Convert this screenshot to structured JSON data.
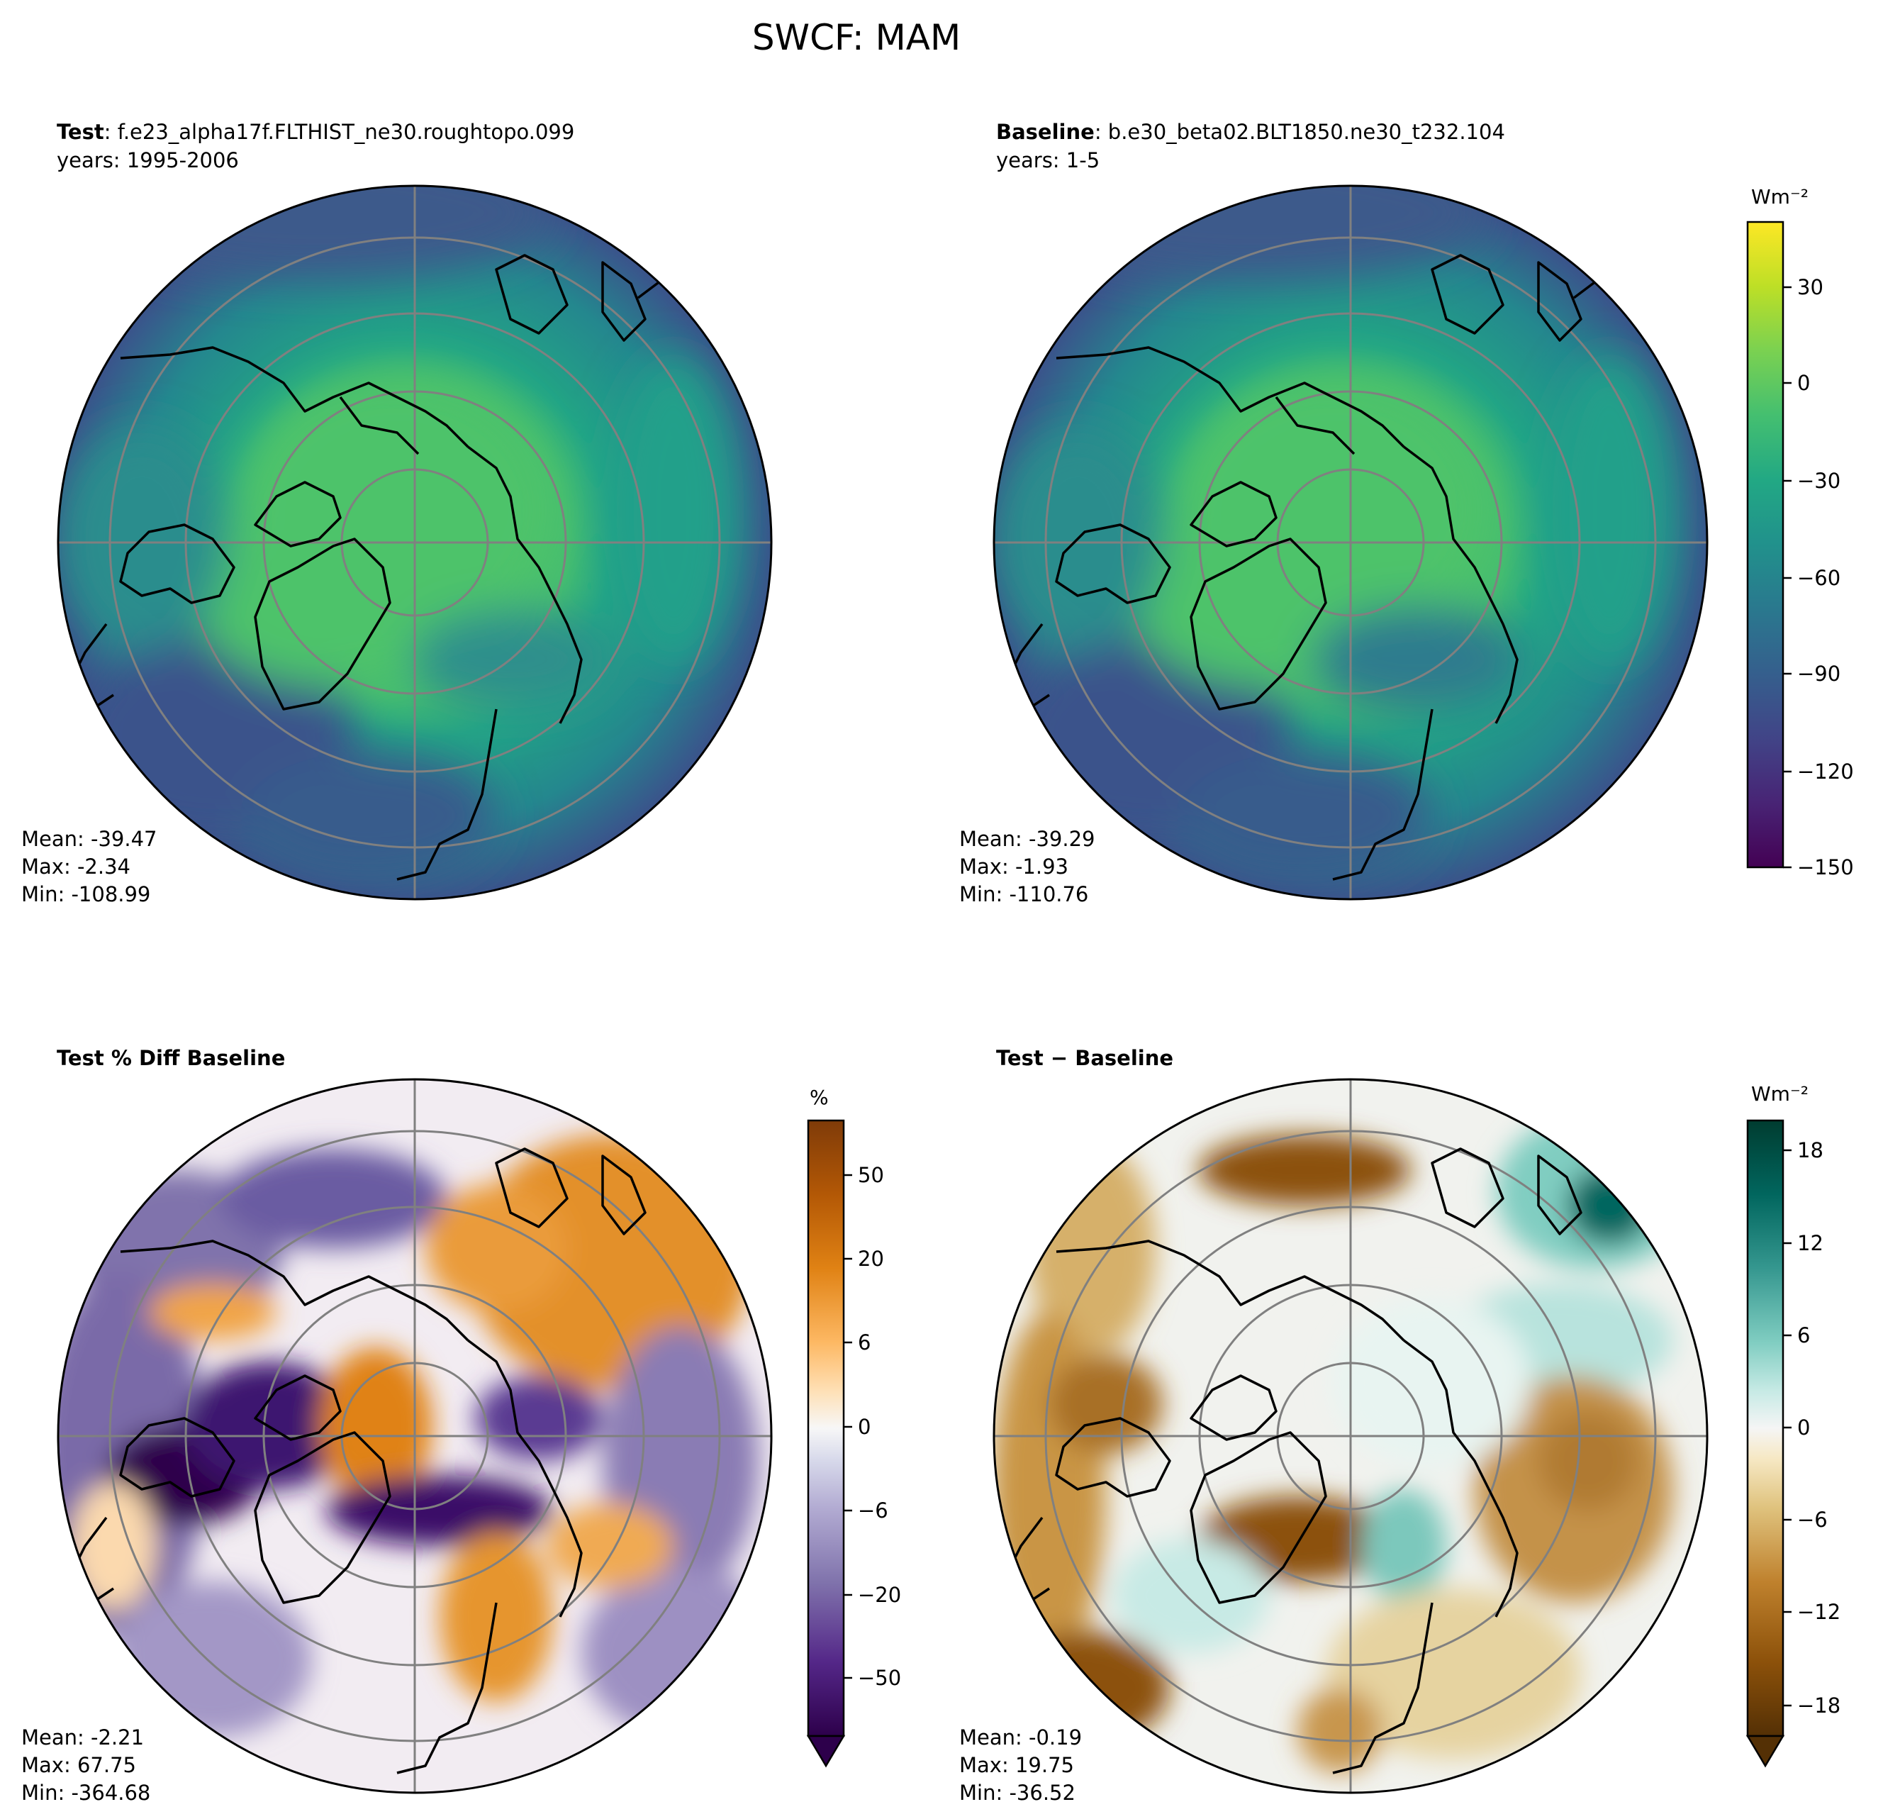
{
  "figure_title": "SWCF: MAM",
  "colors": {
    "grid": "#808080",
    "coast": "#000000",
    "viridis": [
      "#440154",
      "#482475",
      "#414487",
      "#355f8d",
      "#2a788e",
      "#21918c",
      "#22a884",
      "#44bf70",
      "#7ad151",
      "#bddf26",
      "#fde725"
    ],
    "puor": [
      "#2d004b",
      "#542788",
      "#8073ac",
      "#b2abd2",
      "#d8daeb",
      "#f7f7f7",
      "#fee0b6",
      "#fdb863",
      "#e08214",
      "#b35806",
      "#7f3b08"
    ],
    "brbg": [
      "#543005",
      "#8c510a",
      "#bf812d",
      "#dfc27d",
      "#f6e8c3",
      "#f5f5f5",
      "#c7eae5",
      "#80cdc1",
      "#35978f",
      "#01665e",
      "#003c30"
    ]
  },
  "panels": [
    {
      "id": "test",
      "label_bold": "Test",
      "label_rest": ": f.e23_alpha17f.FLTHIST_ne30.roughtopo.099",
      "years": "years: 1995-2006",
      "stats": {
        "mean": "Mean: -39.47",
        "max": "Max: -2.34",
        "min": "Min: -108.99"
      }
    },
    {
      "id": "baseline",
      "label_bold": "Baseline",
      "label_rest": ": b.e30_beta02.BLT1850.ne30_t232.104",
      "years": "years: 1-5",
      "stats": {
        "mean": "Mean: -39.29",
        "max": "Max: -1.93",
        "min": "Min: -110.76"
      }
    },
    {
      "id": "pctdiff",
      "label_bold": "Test % Diff Baseline",
      "label_rest": "",
      "years": "",
      "stats": {
        "mean": "Mean: -2.21",
        "max": "Max: 67.75",
        "min": "Min: -364.68"
      }
    },
    {
      "id": "diff",
      "label_bold": "Test − Baseline",
      "label_rest": "",
      "years": "",
      "stats": {
        "mean": "Mean: -0.19",
        "max": "Max: 19.75",
        "min": "Min: -36.52"
      }
    }
  ],
  "colorbars": [
    {
      "id": "cb-field",
      "unit": "Wm⁻²",
      "ticks": [
        "30",
        "0",
        "−30",
        "−60",
        "−90",
        "−120",
        "−150"
      ]
    },
    {
      "id": "cb-pct",
      "unit": "%",
      "ticks": [
        "50",
        "20",
        "6",
        "0",
        "−6",
        "−20",
        "−50"
      ]
    },
    {
      "id": "cb-diff",
      "unit": "Wm⁻²",
      "ticks": [
        "18",
        "12",
        "6",
        "0",
        "−6",
        "−12",
        "−18"
      ]
    }
  ],
  "chart_data": [
    {
      "type": "heatmap",
      "title": "Test: f.e23_alpha17f.FLTHIST_ne30.roughtopo.099",
      "projection": "north polar stereographic",
      "colorbar_ticks": [
        30,
        0,
        -30,
        -60,
        -90,
        -120,
        -150
      ],
      "colorbar_range": [
        -150,
        50
      ],
      "stats": {
        "mean": -39.47,
        "max": -2.34,
        "min": -108.99
      }
    },
    {
      "type": "heatmap",
      "title": "Baseline: b.e30_beta02.BLT1850.ne30_t232.104",
      "projection": "north polar stereographic",
      "colorbar_ticks": [
        30,
        0,
        -30,
        -60,
        -90,
        -120,
        -150
      ],
      "colorbar_range": [
        -150,
        50
      ],
      "stats": {
        "mean": -39.29,
        "max": -1.93,
        "min": -110.76
      }
    },
    {
      "type": "heatmap",
      "title": "Test % Diff Baseline",
      "projection": "north polar stereographic",
      "colorbar_ticks": [
        50,
        20,
        6,
        0,
        -6,
        -20,
        -50
      ],
      "stats": {
        "mean": -2.21,
        "max": 67.75,
        "min": -364.68
      }
    },
    {
      "type": "heatmap",
      "title": "Test − Baseline",
      "projection": "north polar stereographic",
      "colorbar_ticks": [
        18,
        12,
        6,
        0,
        -6,
        -12,
        -18
      ],
      "stats": {
        "mean": -0.19,
        "max": 19.75,
        "min": -36.52
      }
    }
  ]
}
